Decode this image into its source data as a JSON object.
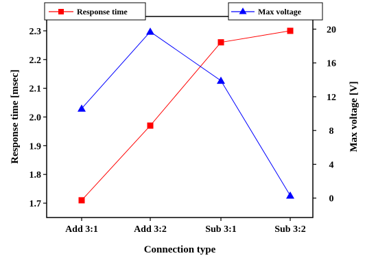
{
  "chart_data": {
    "type": "line",
    "categories": [
      "Add 3:1",
      "Add 3:2",
      "Sub 3:1",
      "Sub 3:2"
    ],
    "xlabel": "Connection type",
    "ylabel_left": "Response time [msec]",
    "ylabel_right": "Max voltage [V]",
    "ylim_left": [
      1.65,
      2.35
    ],
    "ylim_right": [
      -2.3,
      21.5
    ],
    "yticks_left": [
      "1.7",
      "1.8",
      "1.9",
      "2.0",
      "2.1",
      "2.2",
      "2.3"
    ],
    "yticks_right": [
      "0",
      "4",
      "8",
      "12",
      "16",
      "20"
    ],
    "grid": false,
    "series": [
      {
        "name": "Response time",
        "axis": "left",
        "color": "#ff0000",
        "marker": "square",
        "values": [
          1.71,
          1.97,
          2.26,
          2.3
        ]
      },
      {
        "name": "Max voltage",
        "axis": "right",
        "color": "#0000ff",
        "marker": "triangle",
        "values": [
          10.6,
          19.7,
          13.9,
          0.3
        ]
      }
    ]
  }
}
